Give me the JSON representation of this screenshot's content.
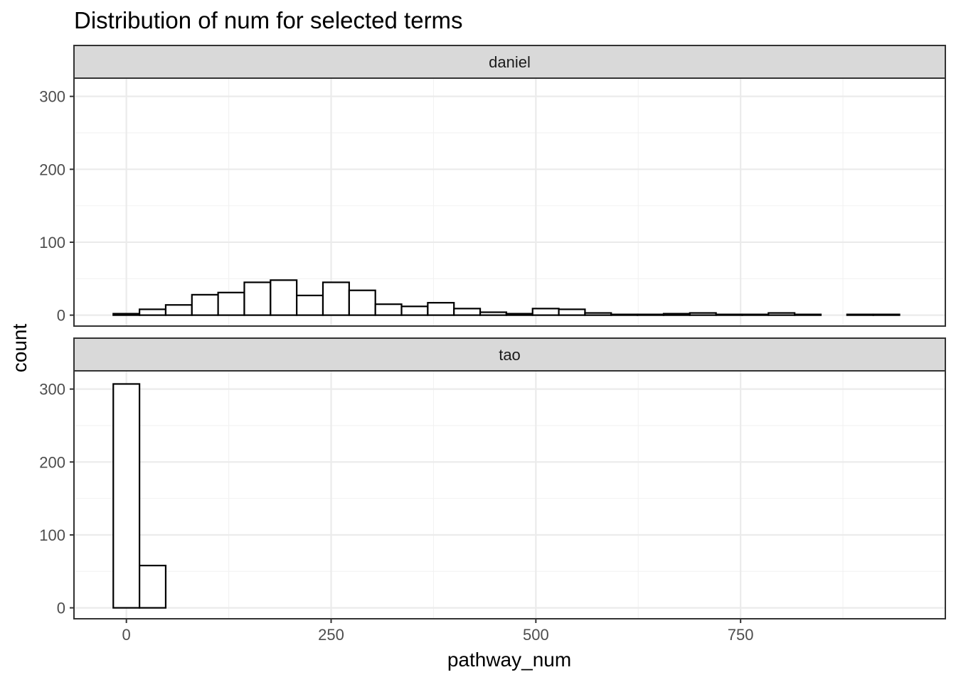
{
  "chart_data": {
    "type": "bar",
    "title": "Distribution of num for selected terms",
    "xlabel": "pathway_num",
    "ylabel": "count",
    "xlim": [
      -64,
      1000
    ],
    "ylim": [
      -15,
      325
    ],
    "x_ticks": [
      0,
      250,
      500,
      750
    ],
    "y_ticks": [
      0,
      100,
      200,
      300
    ],
    "grid": true,
    "bin_start": -16,
    "bin_width": 32,
    "facets": [
      {
        "name": "daniel",
        "values": [
          2,
          8,
          14,
          28,
          31,
          45,
          48,
          27,
          45,
          34,
          15,
          12,
          17,
          9,
          4,
          2,
          9,
          8,
          3,
          1,
          1,
          2,
          3,
          1,
          1,
          3,
          1,
          0,
          1,
          1
        ]
      },
      {
        "name": "tao",
        "values": [
          307,
          58,
          0,
          0,
          0,
          0,
          0,
          0,
          0,
          0,
          0,
          0,
          0,
          0,
          0,
          0,
          0,
          0,
          0,
          0,
          0,
          0,
          0,
          0,
          0,
          0,
          0,
          0,
          0,
          0
        ]
      }
    ]
  }
}
